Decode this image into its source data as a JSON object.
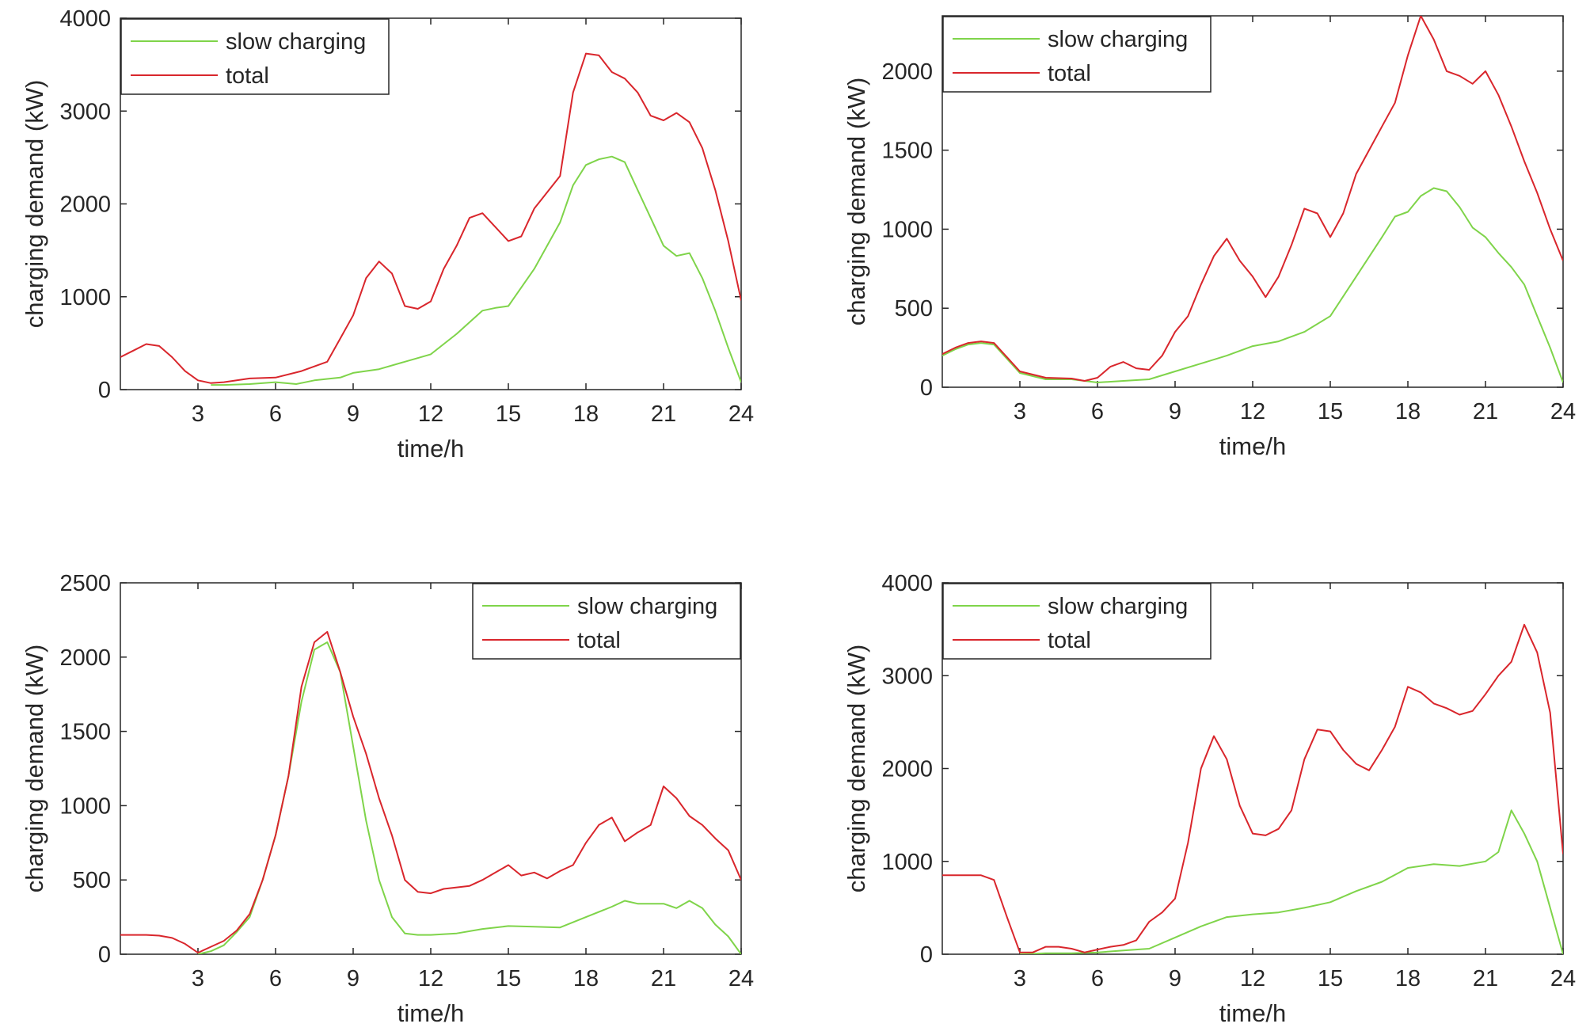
{
  "chart_data": [
    {
      "type": "line",
      "xlabel": "time/h",
      "ylabel": "charging demand (kW)",
      "xlim": [
        0,
        24
      ],
      "ylim": [
        0,
        4000
      ],
      "xticks": [
        3,
        6,
        9,
        12,
        15,
        18,
        21,
        24
      ],
      "yticks": [
        0,
        1000,
        2000,
        3000,
        4000
      ],
      "legend": {
        "position": "top-left",
        "entries": [
          "slow charging",
          "total"
        ]
      },
      "series": [
        {
          "name": "slow charging",
          "color": "#7fd44a",
          "x": [
            3.5,
            4,
            5,
            6,
            6.8,
            7.5,
            8.5,
            9,
            10,
            11,
            12,
            13,
            14,
            14.5,
            15,
            16,
            17,
            17.5,
            18,
            18.5,
            19,
            19.5,
            20,
            20.5,
            21,
            21.5,
            22,
            22.5,
            23,
            23.5,
            24
          ],
          "values": [
            50,
            50,
            60,
            80,
            60,
            100,
            130,
            180,
            220,
            300,
            380,
            600,
            850,
            880,
            900,
            1300,
            1800,
            2200,
            2420,
            2480,
            2510,
            2450,
            2150,
            1850,
            1550,
            1440,
            1470,
            1200,
            850,
            450,
            80
          ]
        },
        {
          "name": "total",
          "color": "#d9262c",
          "x": [
            0,
            0.5,
            1,
            1.5,
            2,
            2.5,
            3,
            3.5,
            4,
            5,
            6,
            7,
            8,
            8.5,
            9,
            9.5,
            10,
            10.5,
            11,
            11.5,
            12,
            12.5,
            13,
            13.5,
            14,
            14.5,
            15,
            15.5,
            16,
            17,
            17.5,
            18,
            18.5,
            19,
            19.5,
            20,
            20.5,
            21,
            21.5,
            22,
            22.5,
            23,
            23.5,
            24
          ],
          "values": [
            350,
            420,
            490,
            470,
            350,
            200,
            100,
            70,
            80,
            120,
            130,
            200,
            300,
            550,
            800,
            1200,
            1380,
            1250,
            900,
            870,
            950,
            1300,
            1550,
            1850,
            1900,
            1750,
            1600,
            1650,
            1950,
            2300,
            3200,
            3620,
            3600,
            3420,
            3350,
            3200,
            2950,
            2900,
            2980,
            2880,
            2600,
            2150,
            1600,
            960
          ]
        }
      ]
    },
    {
      "type": "line",
      "xlabel": "time/h",
      "ylabel": "charging demand (kW)",
      "xlim": [
        0,
        24
      ],
      "ylim": [
        0,
        2350
      ],
      "xticks": [
        3,
        6,
        9,
        12,
        15,
        18,
        21,
        24
      ],
      "yticks": [
        0,
        500,
        1000,
        1500,
        2000
      ],
      "legend": {
        "position": "top-left",
        "entries": [
          "slow charging",
          "total"
        ]
      },
      "series": [
        {
          "name": "slow charging",
          "color": "#7fd44a",
          "x": [
            0,
            0.5,
            1,
            1.5,
            2,
            2.5,
            3,
            4,
            5,
            5.5,
            6,
            7,
            8,
            9,
            10,
            11,
            12,
            13,
            14,
            15,
            16,
            17,
            17.5,
            18,
            18.5,
            19,
            19.5,
            20,
            20.5,
            21,
            21.5,
            22,
            22.5,
            23,
            23.5,
            24
          ],
          "values": [
            200,
            240,
            270,
            280,
            270,
            180,
            90,
            50,
            50,
            40,
            30,
            40,
            50,
            100,
            150,
            200,
            260,
            290,
            350,
            450,
            700,
            950,
            1080,
            1110,
            1210,
            1260,
            1240,
            1140,
            1010,
            950,
            850,
            760,
            650,
            450,
            250,
            30
          ]
        },
        {
          "name": "total",
          "color": "#d9262c",
          "x": [
            0,
            0.5,
            1,
            1.5,
            2,
            2.5,
            3,
            4,
            5,
            5.5,
            6,
            6.5,
            7,
            7.5,
            8,
            8.5,
            9,
            9.5,
            10,
            10.5,
            11,
            11.5,
            12,
            12.5,
            13,
            13.5,
            14,
            14.5,
            15,
            15.5,
            16,
            16.5,
            17,
            17.5,
            18,
            18.5,
            19,
            19.5,
            20,
            20.5,
            21,
            21.5,
            22,
            22.5,
            23,
            23.5,
            24
          ],
          "values": [
            210,
            250,
            280,
            290,
            280,
            190,
            100,
            60,
            55,
            40,
            60,
            130,
            160,
            120,
            110,
            200,
            350,
            450,
            650,
            830,
            940,
            800,
            700,
            570,
            700,
            900,
            1130,
            1100,
            950,
            1100,
            1350,
            1500,
            1650,
            1800,
            2100,
            2350,
            2200,
            2000,
            1970,
            1920,
            2000,
            1850,
            1650,
            1430,
            1230,
            1000,
            800
          ]
        }
      ]
    },
    {
      "type": "line",
      "xlabel": "time/h",
      "ylabel": "charging demand (kW)",
      "xlim": [
        0,
        24
      ],
      "ylim": [
        0,
        2500
      ],
      "xticks": [
        3,
        6,
        9,
        12,
        15,
        18,
        21,
        24
      ],
      "yticks": [
        0,
        500,
        1000,
        1500,
        2000,
        2500
      ],
      "legend": {
        "position": "top-right",
        "entries": [
          "slow charging",
          "total"
        ]
      },
      "series": [
        {
          "name": "slow charging",
          "color": "#7fd44a",
          "x": [
            3,
            3.5,
            4,
            4.5,
            5,
            5.5,
            6,
            6.5,
            7,
            7.5,
            8,
            8.5,
            9,
            9.5,
            10,
            10.5,
            11,
            11.5,
            12,
            13,
            14,
            15,
            16,
            17,
            18,
            19,
            19.5,
            20,
            21,
            21.5,
            22,
            22.5,
            23,
            23.5,
            24
          ],
          "values": [
            0,
            20,
            60,
            150,
            250,
            500,
            800,
            1200,
            1700,
            2050,
            2100,
            1900,
            1400,
            900,
            500,
            250,
            140,
            130,
            130,
            140,
            170,
            190,
            185,
            180,
            250,
            320,
            360,
            340,
            340,
            310,
            360,
            310,
            200,
            120,
            0
          ]
        },
        {
          "name": "total",
          "color": "#d9262c",
          "x": [
            0,
            1,
            1.5,
            2,
            2.5,
            3,
            3.5,
            4,
            4.5,
            5,
            5.5,
            6,
            6.5,
            7,
            7.5,
            8,
            8.5,
            9,
            9.5,
            10,
            10.5,
            11,
            11.5,
            12,
            12.5,
            13,
            13.5,
            14,
            14.5,
            15,
            15.5,
            16,
            16.5,
            17,
            17.5,
            18,
            18.5,
            19,
            19.5,
            20,
            20.5,
            21,
            21.5,
            22,
            22.5,
            23,
            23.5,
            24
          ],
          "values": [
            130,
            130,
            125,
            110,
            70,
            10,
            50,
            90,
            160,
            270,
            500,
            800,
            1200,
            1800,
            2100,
            2170,
            1900,
            1600,
            1350,
            1050,
            800,
            500,
            420,
            410,
            440,
            450,
            460,
            500,
            550,
            600,
            530,
            550,
            510,
            560,
            600,
            750,
            870,
            920,
            760,
            820,
            870,
            1130,
            1050,
            930,
            870,
            780,
            700,
            500
          ]
        }
      ]
    },
    {
      "type": "line",
      "xlabel": "time/h",
      "ylabel": "charging demand (kW)",
      "xlim": [
        0,
        24
      ],
      "ylim": [
        0,
        4000
      ],
      "xticks": [
        3,
        6,
        9,
        12,
        15,
        18,
        21,
        24
      ],
      "yticks": [
        0,
        1000,
        2000,
        3000,
        4000
      ],
      "legend": {
        "position": "top-left",
        "entries": [
          "slow charging",
          "total"
        ]
      },
      "series": [
        {
          "name": "slow charging",
          "color": "#7fd44a",
          "x": [
            3,
            4,
            5,
            6,
            7,
            8,
            9,
            10,
            11,
            12,
            13,
            14,
            15,
            16,
            17,
            18,
            19,
            20,
            21,
            21.5,
            22,
            22.5,
            23,
            23.5,
            24
          ],
          "values": [
            0,
            10,
            10,
            20,
            40,
            60,
            180,
            300,
            400,
            430,
            450,
            500,
            560,
            680,
            780,
            930,
            970,
            950,
            1000,
            1100,
            1550,
            1300,
            1000,
            500,
            0
          ]
        },
        {
          "name": "total",
          "color": "#d9262c",
          "x": [
            0,
            1,
            1.5,
            2,
            2.5,
            3,
            3.5,
            4,
            4.5,
            5,
            5.5,
            6,
            6.5,
            7,
            7.5,
            8,
            8.5,
            9,
            9.5,
            10,
            10.5,
            11,
            11.5,
            12,
            12.5,
            13,
            13.5,
            14,
            14.5,
            15,
            15.5,
            16,
            16.5,
            17,
            17.5,
            18,
            18.5,
            19,
            19.5,
            20,
            20.5,
            21,
            21.5,
            22,
            22.5,
            23,
            23.5,
            24
          ],
          "values": [
            850,
            850,
            850,
            800,
            400,
            20,
            20,
            80,
            80,
            60,
            20,
            50,
            80,
            100,
            150,
            350,
            450,
            600,
            1200,
            2000,
            2350,
            2100,
            1600,
            1300,
            1280,
            1350,
            1550,
            2100,
            2420,
            2400,
            2200,
            2050,
            1980,
            2200,
            2450,
            2880,
            2820,
            2700,
            2650,
            2580,
            2620,
            2800,
            3000,
            3150,
            3550,
            3250,
            2600,
            1080
          ]
        }
      ]
    }
  ]
}
